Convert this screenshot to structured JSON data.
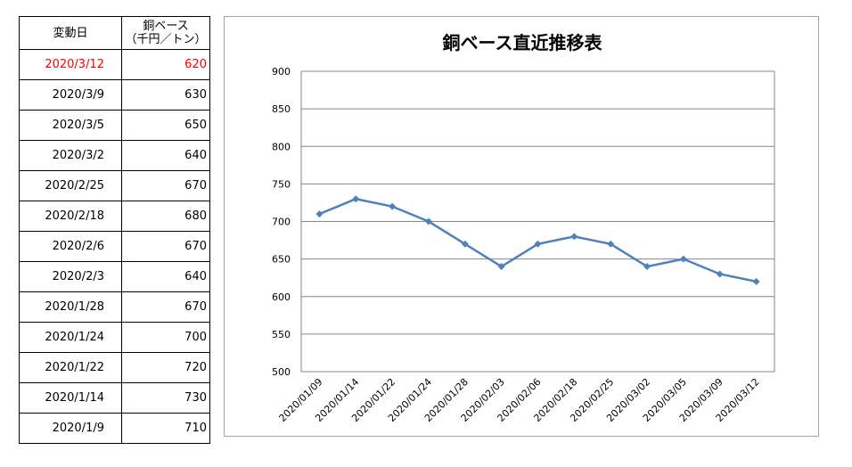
{
  "table": {
    "header": {
      "date": "変動日",
      "price_line1": "銅ベース",
      "price_line2": "（千円／トン）"
    },
    "rows": [
      {
        "date": "2020/3/12",
        "price": "620"
      },
      {
        "date": "2020/3/9",
        "price": "630"
      },
      {
        "date": "2020/3/5",
        "price": "650"
      },
      {
        "date": "2020/3/2",
        "price": "640"
      },
      {
        "date": "2020/2/25",
        "price": "670"
      },
      {
        "date": "2020/2/18",
        "price": "680"
      },
      {
        "date": "2020/2/6",
        "price": "670"
      },
      {
        "date": "2020/2/3",
        "price": "640"
      },
      {
        "date": "2020/1/28",
        "price": "670"
      },
      {
        "date": "2020/1/24",
        "price": "700"
      },
      {
        "date": "2020/1/22",
        "price": "720"
      },
      {
        "date": "2020/1/14",
        "price": "730"
      },
      {
        "date": "2020/1/9",
        "price": "710"
      }
    ],
    "highlight_color": "#ff0000"
  },
  "chart_data": {
    "type": "line",
    "title": "銅ベース直近推移表",
    "xlabel": "",
    "ylabel": "",
    "categories": [
      "2020/01/09",
      "2020/01/14",
      "2020/01/22",
      "2020/01/24",
      "2020/01/28",
      "2020/02/03",
      "2020/02/06",
      "2020/02/18",
      "2020/02/25",
      "2020/03/02",
      "2020/03/05",
      "2020/03/09",
      "2020/03/12"
    ],
    "series": [
      {
        "values": [
          710,
          730,
          720,
          700,
          670,
          640,
          670,
          680,
          670,
          640,
          650,
          630,
          620
        ],
        "color": "#4f81bd"
      }
    ],
    "ylim": [
      500,
      900
    ],
    "yticks": [
      500,
      550,
      600,
      650,
      700,
      750,
      800,
      850,
      900
    ],
    "grid": true,
    "legend": "none",
    "marker": "diamond"
  }
}
